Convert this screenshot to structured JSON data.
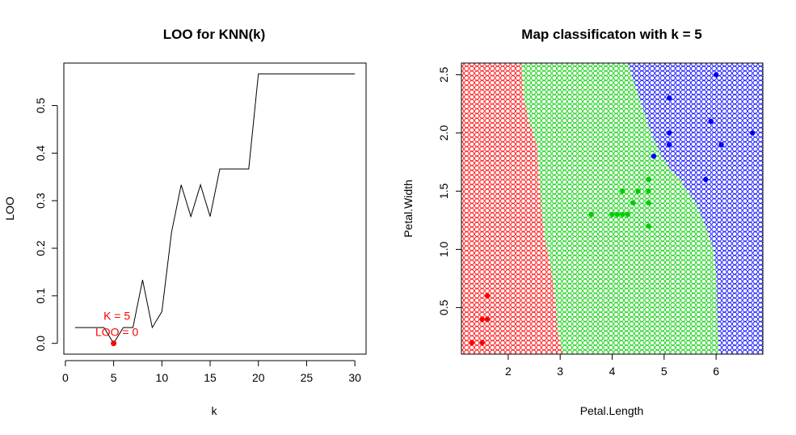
{
  "colors": {
    "red": "#ff0000",
    "green": "#00cd00",
    "blue": "#0000ff",
    "axis": "#000000"
  },
  "chart_data": [
    {
      "type": "line",
      "title": "LOO for KNN(k)",
      "xlabel": "k",
      "ylabel": "LOO",
      "xlim": [
        1,
        30
      ],
      "ylim": [
        0,
        0.5667
      ],
      "x_ticks": [
        0,
        5,
        10,
        15,
        20,
        25,
        30
      ],
      "y_ticks": [
        0.0,
        0.1,
        0.2,
        0.3,
        0.4,
        0.5
      ],
      "x_tick_labels": [
        "0",
        "5",
        "10",
        "15",
        "20",
        "25",
        "30"
      ],
      "y_tick_labels": [
        "0.0",
        "0.1",
        "0.2",
        "0.3",
        "0.4",
        "0.5"
      ],
      "x": [
        1,
        2,
        3,
        4,
        5,
        6,
        7,
        8,
        9,
        10,
        11,
        12,
        13,
        14,
        15,
        16,
        17,
        18,
        19,
        20,
        21,
        22,
        23,
        24,
        25,
        26,
        27,
        28,
        29,
        30
      ],
      "y": [
        0.0333,
        0.0333,
        0.0333,
        0.0333,
        0.0,
        0.0333,
        0.0333,
        0.1333,
        0.0333,
        0.0667,
        0.2333,
        0.3333,
        0.2667,
        0.3333,
        0.2667,
        0.3667,
        0.3667,
        0.3667,
        0.3667,
        0.5667,
        0.5667,
        0.5667,
        0.5667,
        0.5667,
        0.5667,
        0.5667,
        0.5667,
        0.5667,
        0.5667,
        0.5667
      ],
      "highlight": {
        "x": 5,
        "y": 0.0,
        "annotation_k": "K = 5",
        "annotation_loo": "LOO = 0"
      }
    },
    {
      "type": "scatter",
      "title": "Map classificaton with k =  5",
      "xlabel": "Petal.Length",
      "ylabel": "Petal.Width",
      "xlim": [
        1.1,
        6.9
      ],
      "ylim": [
        0.1,
        2.6
      ],
      "x_ticks": [
        2,
        3,
        4,
        5,
        6
      ],
      "y_ticks": [
        0.5,
        1.0,
        1.5,
        2.0,
        2.5
      ],
      "x_tick_labels": [
        "2",
        "3",
        "4",
        "5",
        "6"
      ],
      "y_tick_labels": [
        "0.5",
        "1.0",
        "1.5",
        "2.0",
        "2.5"
      ],
      "grid_step": 0.1,
      "region_boundaries": {
        "red_green": [
          [
            0.1,
            3.05
          ],
          [
            0.3,
            2.95
          ],
          [
            0.6,
            2.9
          ],
          [
            0.9,
            2.8
          ],
          [
            1.1,
            2.7
          ],
          [
            1.3,
            2.65
          ],
          [
            1.6,
            2.6
          ],
          [
            1.9,
            2.55
          ],
          [
            2.1,
            2.4
          ],
          [
            2.3,
            2.3
          ],
          [
            2.6,
            2.25
          ]
        ],
        "green_blue": [
          [
            0.1,
            6.05
          ],
          [
            0.8,
            6.0
          ],
          [
            1.0,
            5.95
          ],
          [
            1.2,
            5.8
          ],
          [
            1.4,
            5.6
          ],
          [
            1.5,
            5.45
          ],
          [
            1.6,
            5.3
          ],
          [
            1.7,
            5.1
          ],
          [
            1.8,
            4.95
          ],
          [
            2.0,
            4.75
          ],
          [
            2.2,
            4.6
          ],
          [
            2.4,
            4.45
          ],
          [
            2.6,
            4.3
          ]
        ]
      },
      "series": [
        {
          "class": "red",
          "points": [
            [
              1.3,
              0.2
            ],
            [
              1.5,
              0.2
            ],
            [
              1.5,
              0.4
            ],
            [
              1.6,
              0.4
            ],
            [
              1.6,
              0.6
            ]
          ]
        },
        {
          "class": "green",
          "points": [
            [
              3.6,
              1.3
            ],
            [
              4.0,
              1.3
            ],
            [
              4.1,
              1.3
            ],
            [
              4.2,
              1.3
            ],
            [
              4.3,
              1.3
            ],
            [
              4.2,
              1.5
            ],
            [
              4.4,
              1.4
            ],
            [
              4.5,
              1.5
            ],
            [
              4.7,
              1.5
            ],
            [
              4.7,
              1.4
            ],
            [
              4.7,
              1.6
            ],
            [
              4.7,
              1.2
            ]
          ]
        },
        {
          "class": "blue",
          "points": [
            [
              4.8,
              1.8
            ],
            [
              5.1,
              2.3
            ],
            [
              5.1,
              2.0
            ],
            [
              5.1,
              1.9
            ],
            [
              5.8,
              1.6
            ],
            [
              5.9,
              2.1
            ],
            [
              6.0,
              2.5
            ],
            [
              6.1,
              1.9
            ],
            [
              6.7,
              2.0
            ]
          ]
        }
      ]
    }
  ]
}
